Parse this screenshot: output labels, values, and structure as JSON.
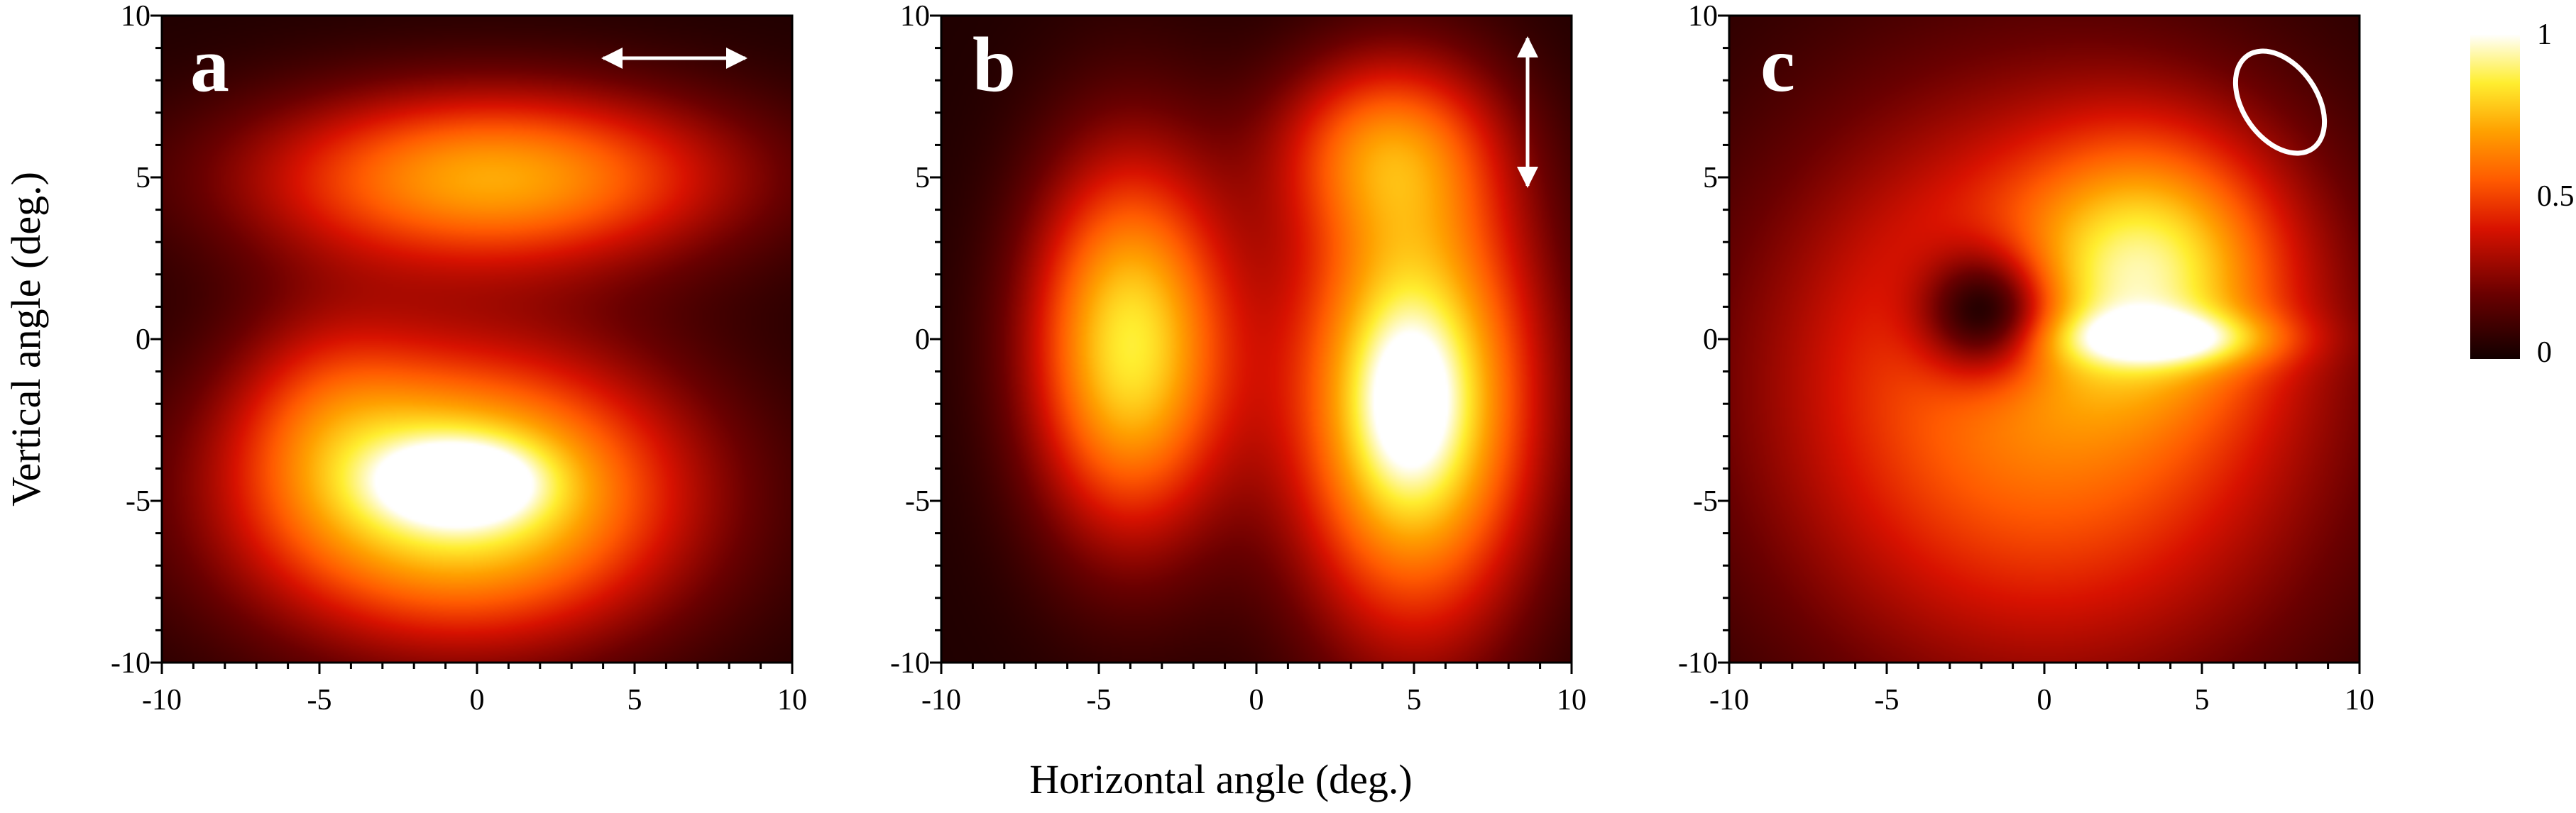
{
  "chart_data": [
    {
      "type": "heatmap",
      "panel_label": "a",
      "polarization_icon": "horizontal-double-arrow",
      "xlim": [
        -10,
        10
      ],
      "ylim": [
        -10,
        10
      ],
      "xticks": [
        "-10",
        "-5",
        "0",
        "5",
        "10"
      ],
      "yticks": [
        "10",
        "5",
        "0",
        "-5",
        "-10"
      ],
      "blobs": [
        {
          "x": 0.5,
          "y": 5.0,
          "sx": 5.5,
          "sy": 2.0,
          "value": 0.68
        },
        {
          "x": -0.5,
          "y": -4.8,
          "sx": 5.0,
          "sy": 3.2,
          "value": 0.9
        },
        {
          "x": -0.5,
          "y": -4.4,
          "sx": 1.8,
          "sy": 0.9,
          "value": 0.35
        },
        {
          "x": -4.8,
          "y": -2.0,
          "sx": 2.2,
          "sy": 2.5,
          "value": 0.18
        }
      ]
    },
    {
      "type": "heatmap",
      "panel_label": "b",
      "polarization_icon": "vertical-double-arrow",
      "xlim": [
        -10,
        10
      ],
      "ylim": [
        -10,
        10
      ],
      "xticks": [
        "-10",
        "-5",
        "0",
        "5",
        "10"
      ],
      "yticks": [
        "10",
        "5",
        "0",
        "-5",
        "-10"
      ],
      "blobs": [
        {
          "x": -4.0,
          "y": -0.2,
          "sx": 2.3,
          "sy": 4.2,
          "value": 0.82
        },
        {
          "x": 5.0,
          "y": -1.8,
          "sx": 2.8,
          "sy": 5.2,
          "value": 0.92
        },
        {
          "x": 4.8,
          "y": -2.0,
          "sx": 1.2,
          "sy": 2.0,
          "value": 0.2
        },
        {
          "x": 4.0,
          "y": 6.0,
          "sx": 2.5,
          "sy": 2.0,
          "value": 0.4
        }
      ]
    },
    {
      "type": "heatmap",
      "panel_label": "c",
      "polarization_icon": "tilted-ellipse",
      "xlim": [
        -10,
        10
      ],
      "ylim": [
        -10,
        10
      ],
      "xticks": [
        "-10",
        "-5",
        "0",
        "5",
        "10"
      ],
      "yticks": [
        "10",
        "5",
        "0",
        "-5",
        "-10"
      ],
      "blobs": [
        {
          "x": 0.0,
          "y": -1.5,
          "sx": 6.5,
          "sy": 6.5,
          "value": 0.62
        },
        {
          "x": 3.5,
          "y": 2.5,
          "sx": 2.8,
          "sy": 2.8,
          "value": 0.45
        },
        {
          "x": 4.0,
          "y": 0.0,
          "sx": 2.5,
          "sy": 0.6,
          "value": 0.35
        }
      ],
      "holes": [
        {
          "x": -1.8,
          "y": 0.8,
          "sx": 1.5,
          "sy": 1.4,
          "value": 0.6
        }
      ]
    }
  ],
  "axes": {
    "ylabel": "Vertical angle (deg.)",
    "xlabel": "Horizontal angle (deg.)"
  },
  "colorbar": {
    "colormap": "hot",
    "min": 0,
    "max": 1,
    "ticks": [
      "1",
      "0.5",
      "0"
    ]
  },
  "colors": {
    "background": "#1c0200",
    "low": "#1c0200",
    "mid": "#e03000",
    "high": "#ffff60",
    "peak": "#ffffff"
  }
}
